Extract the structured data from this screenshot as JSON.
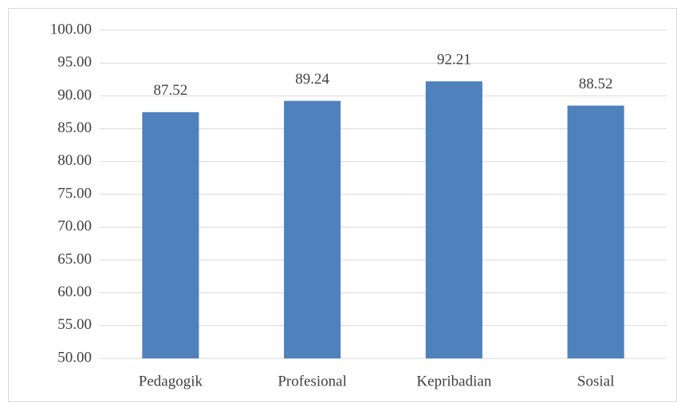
{
  "chart_data": {
    "type": "bar",
    "categories": [
      "Pedagogik",
      "Profesional",
      "Kepribadian",
      "Sosial"
    ],
    "values": [
      87.52,
      89.24,
      92.21,
      88.52
    ],
    "color": "#4f81bd",
    "ylim": [
      50,
      100
    ],
    "yticks": [
      {
        "value": 50,
        "label": "50.00"
      },
      {
        "value": 55,
        "label": "55.00"
      },
      {
        "value": 60,
        "label": "60.00"
      },
      {
        "value": 65,
        "label": "65.00"
      },
      {
        "value": 70,
        "label": "70.00"
      },
      {
        "value": 75,
        "label": "75.00"
      },
      {
        "value": 80,
        "label": "80.00"
      },
      {
        "value": 85,
        "label": "85.00"
      },
      {
        "value": 90,
        "label": "90.00"
      },
      {
        "value": 95,
        "label": "95.00"
      },
      {
        "value": 100,
        "label": "100.00"
      }
    ],
    "grid": true
  }
}
